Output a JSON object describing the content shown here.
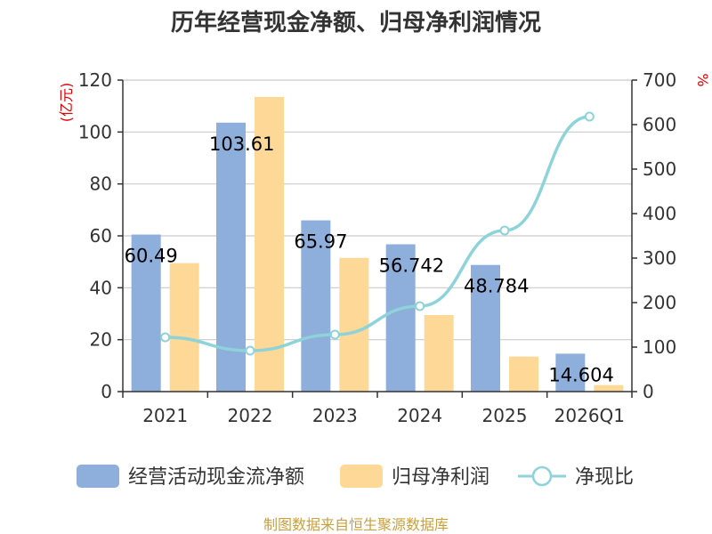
{
  "chart_data": {
    "type": "bar",
    "title": "历年经营现金净额、归母净利润情况",
    "categories": [
      "2021",
      "2022",
      "2023",
      "2024",
      "2025",
      "2026Q1"
    ],
    "y_left": {
      "unit": "(亿元)",
      "ylim": [
        0,
        120
      ],
      "ticks": [
        0,
        20,
        40,
        60,
        80,
        100,
        120
      ]
    },
    "y_right": {
      "unit": "%",
      "ylim": [
        0,
        700
      ],
      "ticks": [
        0,
        100,
        200,
        300,
        400,
        500,
        600,
        700
      ]
    },
    "grid": true,
    "legend_position": "bottom",
    "series": [
      {
        "name": "经营活动现金流净额",
        "kind": "bar",
        "axis": "left",
        "color": "#8eaedb",
        "values": [
          60.49,
          103.61,
          65.97,
          56.74,
          48.784,
          14.604
        ],
        "labels": [
          "60.49",
          "103.61",
          "65.97",
          "56.742",
          "48.784",
          "14.604"
        ]
      },
      {
        "name": "归母净利润",
        "kind": "bar",
        "axis": "left",
        "color": "#fed896",
        "values": [
          49.5,
          113.5,
          51.5,
          29.5,
          13.5,
          2.5
        ]
      },
      {
        "name": "净现比",
        "kind": "line",
        "axis": "right",
        "color": "#8dd3d9",
        "values": [
          122,
          92,
          128,
          192,
          362,
          618
        ]
      }
    ],
    "source": "制图数据来自恒生聚源数据库"
  }
}
